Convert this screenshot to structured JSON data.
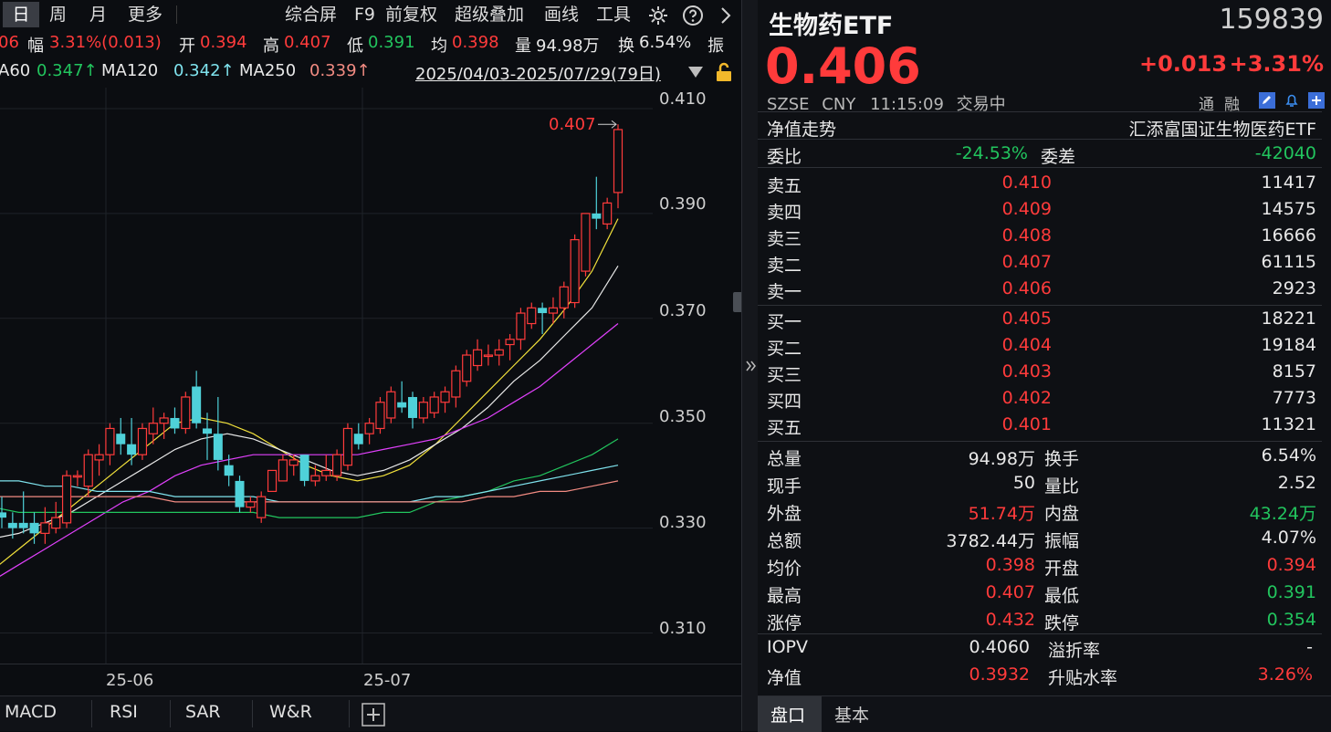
{
  "toolbar": {
    "period_day": "日",
    "period_week": "周",
    "period_month": "月",
    "more": "更多",
    "overview": "综合屏",
    "f9": "F9",
    "adjust": "前复权",
    "overlay": "超级叠加",
    "draw": "画线",
    "tools": "工具"
  },
  "info_row": {
    "first_value": "06",
    "amp_label": "幅",
    "amp_value": "3.31%(0.013)",
    "open_label": "开",
    "open_value": "0.394",
    "high_label": "高",
    "high_value": "0.407",
    "low_label": "低",
    "low_value": "0.391",
    "avg_label": "均",
    "avg_value": "0.398",
    "vol_label": "量",
    "vol_value": "94.98万",
    "turn_label": "换",
    "turn_value": "6.54%",
    "tail_label": "振"
  },
  "ma_row": {
    "ma60_label": "A60",
    "ma60_value": "0.347↑",
    "ma120_label": "MA120",
    "ma120_value": "0.342↑",
    "ma250_label": "MA250",
    "ma250_value": "0.339↑",
    "range": "2025/04/03-2025/07/29(79日)"
  },
  "chart_data": {
    "type": "candlestick",
    "title": "",
    "ylim": [
      0.304,
      0.414
    ],
    "yticks": [
      "0.410",
      "0.390",
      "0.370",
      "0.350",
      "0.330",
      "0.310"
    ],
    "xticks": [
      "25-06",
      "25-07"
    ],
    "max_marker": "0.407",
    "candles": [
      {
        "o": 0.333,
        "h": 0.336,
        "l": 0.33,
        "c": 0.332
      },
      {
        "o": 0.331,
        "h": 0.333,
        "l": 0.328,
        "c": 0.33
      },
      {
        "o": 0.331,
        "h": 0.337,
        "l": 0.329,
        "c": 0.33
      },
      {
        "o": 0.331,
        "h": 0.333,
        "l": 0.327,
        "c": 0.329
      },
      {
        "o": 0.329,
        "h": 0.334,
        "l": 0.327,
        "c": 0.331
      },
      {
        "o": 0.33,
        "h": 0.335,
        "l": 0.329,
        "c": 0.332
      },
      {
        "o": 0.331,
        "h": 0.341,
        "l": 0.33,
        "c": 0.34
      },
      {
        "o": 0.34,
        "h": 0.341,
        "l": 0.338,
        "c": 0.34
      },
      {
        "o": 0.338,
        "h": 0.345,
        "l": 0.336,
        "c": 0.344
      },
      {
        "o": 0.343,
        "h": 0.346,
        "l": 0.34,
        "c": 0.344
      },
      {
        "o": 0.344,
        "h": 0.35,
        "l": 0.342,
        "c": 0.349
      },
      {
        "o": 0.348,
        "h": 0.351,
        "l": 0.344,
        "c": 0.346
      },
      {
        "o": 0.346,
        "h": 0.351,
        "l": 0.342,
        "c": 0.344
      },
      {
        "o": 0.344,
        "h": 0.35,
        "l": 0.343,
        "c": 0.349
      },
      {
        "o": 0.348,
        "h": 0.353,
        "l": 0.346,
        "c": 0.35
      },
      {
        "o": 0.35,
        "h": 0.352,
        "l": 0.347,
        "c": 0.351
      },
      {
        "o": 0.351,
        "h": 0.353,
        "l": 0.348,
        "c": 0.349
      },
      {
        "o": 0.349,
        "h": 0.356,
        "l": 0.348,
        "c": 0.355
      },
      {
        "o": 0.357,
        "h": 0.36,
        "l": 0.349,
        "c": 0.35
      },
      {
        "o": 0.349,
        "h": 0.352,
        "l": 0.343,
        "c": 0.348
      },
      {
        "o": 0.348,
        "h": 0.355,
        "l": 0.341,
        "c": 0.343
      },
      {
        "o": 0.342,
        "h": 0.344,
        "l": 0.338,
        "c": 0.34
      },
      {
        "o": 0.339,
        "h": 0.34,
        "l": 0.333,
        "c": 0.334
      },
      {
        "o": 0.334,
        "h": 0.336,
        "l": 0.333,
        "c": 0.335
      },
      {
        "o": 0.332,
        "h": 0.337,
        "l": 0.331,
        "c": 0.336
      },
      {
        "o": 0.337,
        "h": 0.341,
        "l": 0.337,
        "c": 0.341
      },
      {
        "o": 0.339,
        "h": 0.344,
        "l": 0.339,
        "c": 0.343
      },
      {
        "o": 0.342,
        "h": 0.344,
        "l": 0.34,
        "c": 0.343
      },
      {
        "o": 0.344,
        "h": 0.344,
        "l": 0.338,
        "c": 0.339
      },
      {
        "o": 0.339,
        "h": 0.342,
        "l": 0.338,
        "c": 0.34
      },
      {
        "o": 0.34,
        "h": 0.344,
        "l": 0.339,
        "c": 0.341
      },
      {
        "o": 0.34,
        "h": 0.345,
        "l": 0.339,
        "c": 0.344
      },
      {
        "o": 0.342,
        "h": 0.35,
        "l": 0.341,
        "c": 0.349
      },
      {
        "o": 0.348,
        "h": 0.35,
        "l": 0.345,
        "c": 0.346
      },
      {
        "o": 0.348,
        "h": 0.351,
        "l": 0.346,
        "c": 0.35
      },
      {
        "o": 0.349,
        "h": 0.355,
        "l": 0.348,
        "c": 0.354
      },
      {
        "o": 0.351,
        "h": 0.357,
        "l": 0.35,
        "c": 0.356
      },
      {
        "o": 0.354,
        "h": 0.358,
        "l": 0.352,
        "c": 0.353
      },
      {
        "o": 0.355,
        "h": 0.356,
        "l": 0.349,
        "c": 0.351
      },
      {
        "o": 0.351,
        "h": 0.355,
        "l": 0.35,
        "c": 0.354
      },
      {
        "o": 0.352,
        "h": 0.356,
        "l": 0.351,
        "c": 0.355
      },
      {
        "o": 0.354,
        "h": 0.357,
        "l": 0.352,
        "c": 0.356
      },
      {
        "o": 0.355,
        "h": 0.361,
        "l": 0.353,
        "c": 0.36
      },
      {
        "o": 0.358,
        "h": 0.364,
        "l": 0.357,
        "c": 0.363
      },
      {
        "o": 0.361,
        "h": 0.366,
        "l": 0.36,
        "c": 0.364
      },
      {
        "o": 0.363,
        "h": 0.365,
        "l": 0.361,
        "c": 0.363
      },
      {
        "o": 0.363,
        "h": 0.366,
        "l": 0.361,
        "c": 0.364
      },
      {
        "o": 0.365,
        "h": 0.367,
        "l": 0.362,
        "c": 0.366
      },
      {
        "o": 0.366,
        "h": 0.372,
        "l": 0.364,
        "c": 0.371
      },
      {
        "o": 0.369,
        "h": 0.373,
        "l": 0.368,
        "c": 0.372
      },
      {
        "o": 0.372,
        "h": 0.373,
        "l": 0.367,
        "c": 0.371
      },
      {
        "o": 0.371,
        "h": 0.374,
        "l": 0.369,
        "c": 0.372
      },
      {
        "o": 0.372,
        "h": 0.377,
        "l": 0.37,
        "c": 0.376
      },
      {
        "o": 0.373,
        "h": 0.386,
        "l": 0.372,
        "c": 0.385
      },
      {
        "o": 0.379,
        "h": 0.39,
        "l": 0.378,
        "c": 0.39
      },
      {
        "o": 0.39,
        "h": 0.397,
        "l": 0.387,
        "c": 0.389
      },
      {
        "o": 0.388,
        "h": 0.393,
        "l": 0.387,
        "c": 0.392
      },
      {
        "o": 0.394,
        "h": 0.407,
        "l": 0.391,
        "c": 0.406
      }
    ],
    "ma_series": [
      {
        "color": "#f2e13b",
        "values": [
          0.322,
          0.326,
          0.33,
          0.334,
          0.338,
          0.342,
          0.346,
          0.35,
          0.351,
          0.35,
          0.348,
          0.345,
          0.342,
          0.34,
          0.339,
          0.34,
          0.342,
          0.346,
          0.351,
          0.356,
          0.361,
          0.366,
          0.372,
          0.379,
          0.389
        ]
      },
      {
        "color": "#e8e8e8",
        "values": [
          0.328,
          0.329,
          0.331,
          0.333,
          0.336,
          0.339,
          0.342,
          0.345,
          0.347,
          0.348,
          0.347,
          0.345,
          0.343,
          0.341,
          0.34,
          0.341,
          0.343,
          0.346,
          0.349,
          0.353,
          0.358,
          0.362,
          0.367,
          0.372,
          0.38
        ]
      },
      {
        "color": "#e040fb",
        "values": [
          0.32,
          0.323,
          0.326,
          0.329,
          0.332,
          0.335,
          0.337,
          0.34,
          0.342,
          0.343,
          0.344,
          0.344,
          0.344,
          0.344,
          0.344,
          0.345,
          0.346,
          0.347,
          0.349,
          0.351,
          0.354,
          0.357,
          0.361,
          0.365,
          0.369
        ]
      },
      {
        "color": "#22c55e",
        "values": [
          0.334,
          0.333,
          0.333,
          0.333,
          0.333,
          0.333,
          0.333,
          0.333,
          0.333,
          0.333,
          0.333,
          0.332,
          0.332,
          0.332,
          0.332,
          0.333,
          0.333,
          0.335,
          0.336,
          0.337,
          0.339,
          0.34,
          0.342,
          0.344,
          0.347
        ]
      },
      {
        "color": "#7fe3ee",
        "values": [
          0.339,
          0.339,
          0.338,
          0.338,
          0.337,
          0.337,
          0.337,
          0.336,
          0.336,
          0.336,
          0.336,
          0.335,
          0.335,
          0.335,
          0.335,
          0.335,
          0.335,
          0.336,
          0.336,
          0.337,
          0.338,
          0.339,
          0.34,
          0.341,
          0.342
        ]
      },
      {
        "color": "#f28b82",
        "values": [
          0.336,
          0.336,
          0.336,
          0.336,
          0.336,
          0.336,
          0.336,
          0.335,
          0.335,
          0.335,
          0.335,
          0.335,
          0.335,
          0.335,
          0.335,
          0.335,
          0.335,
          0.335,
          0.335,
          0.336,
          0.336,
          0.337,
          0.337,
          0.338,
          0.339
        ]
      }
    ]
  },
  "bottom_tabs": [
    "MACD",
    "RSI",
    "SAR",
    "W&R"
  ],
  "quote": {
    "name": "生物药ETF",
    "code": "159839",
    "price": "0.406",
    "change": "+0.013",
    "change_pct": "+3.31%",
    "market": "SZSE",
    "currency": "CNY",
    "time": "11:15:09",
    "status": "交易中",
    "tag_tong": "通",
    "tag_rong": "融",
    "nav_trend": "净值走势",
    "fund_name": "汇添富国证生物医药ETF",
    "weibi_label": "委比",
    "weibi_value": "-24.53%",
    "weicha_label": "委差",
    "weicha_value": "-42040"
  },
  "asks": [
    {
      "label": "卖五",
      "price": "0.410",
      "vol": "11417"
    },
    {
      "label": "卖四",
      "price": "0.409",
      "vol": "14575"
    },
    {
      "label": "卖三",
      "price": "0.408",
      "vol": "16666"
    },
    {
      "label": "卖二",
      "price": "0.407",
      "vol": "61115"
    },
    {
      "label": "卖一",
      "price": "0.406",
      "vol": "2923"
    }
  ],
  "bids": [
    {
      "label": "买一",
      "price": "0.405",
      "vol": "18221"
    },
    {
      "label": "买二",
      "price": "0.404",
      "vol": "19184"
    },
    {
      "label": "买三",
      "price": "0.403",
      "vol": "8157"
    },
    {
      "label": "买四",
      "price": "0.402",
      "vol": "7773"
    },
    {
      "label": "买五",
      "price": "0.401",
      "vol": "11321"
    }
  ],
  "stats": [
    {
      "l1": "总量",
      "v1": "94.98万",
      "c1": "wt",
      "l2": "换手",
      "v2": "6.54%",
      "c2": "wt"
    },
    {
      "l1": "现手",
      "v1": "50",
      "c1": "wt",
      "l2": "量比",
      "v2": "2.52",
      "c2": "wt"
    },
    {
      "l1": "外盘",
      "v1": "51.74万",
      "c1": "up",
      "l2": "内盘",
      "v2": "43.24万",
      "c2": "dn"
    },
    {
      "l1": "总额",
      "v1": "3782.44万",
      "c1": "wt",
      "l2": "振幅",
      "v2": "4.07%",
      "c2": "wt"
    },
    {
      "l1": "均价",
      "v1": "0.398",
      "c1": "up",
      "l2": "开盘",
      "v2": "0.394",
      "c2": "up"
    },
    {
      "l1": "最高",
      "v1": "0.407",
      "c1": "up",
      "l2": "最低",
      "v2": "0.391",
      "c2": "dn"
    },
    {
      "l1": "涨停",
      "v1": "0.432",
      "c1": "up",
      "l2": "跌停",
      "v2": "0.354",
      "c2": "dn"
    }
  ],
  "etf_stats": [
    {
      "l1": "IOPV",
      "v1": "0.4060",
      "c1": "wt",
      "l2": "溢折率",
      "v2": "-",
      "c2": "wt"
    },
    {
      "l1": "净值",
      "v1": "0.3932",
      "c1": "up",
      "l2": "升贴水率",
      "v2": "3.26%",
      "c2": "up"
    }
  ],
  "right_tabs": {
    "pankou": "盘口",
    "jiben": "基本"
  }
}
